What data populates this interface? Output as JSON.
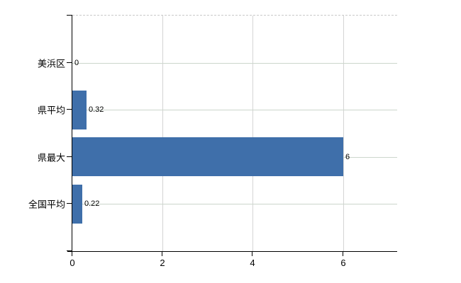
{
  "chart": {
    "background": "#ffffff",
    "bar_color": "#3f6faa",
    "axis_color": "#000000",
    "gridline_color_horizontal": "#ccd6cc",
    "gridline_color_vertical": "#d4d4d4",
    "plot_top_border_color": "#c9c9c9",
    "text_color": "#000000"
  },
  "chart_data": {
    "type": "bar",
    "orientation": "horizontal",
    "title": "",
    "xlabel": "",
    "ylabel": "",
    "categories": [
      "美浜区",
      "県平均",
      "県最大",
      "全国平均"
    ],
    "values": [
      0,
      0.32,
      6,
      0.22
    ],
    "value_labels": [
      "0",
      "0.32",
      "6",
      "0.22"
    ],
    "x_ticks": [
      0,
      2,
      4,
      6
    ],
    "x_tick_labels": [
      "0",
      "2",
      "4",
      "6"
    ],
    "xlim": [
      0,
      7.2
    ],
    "grid": true,
    "legend": false
  }
}
